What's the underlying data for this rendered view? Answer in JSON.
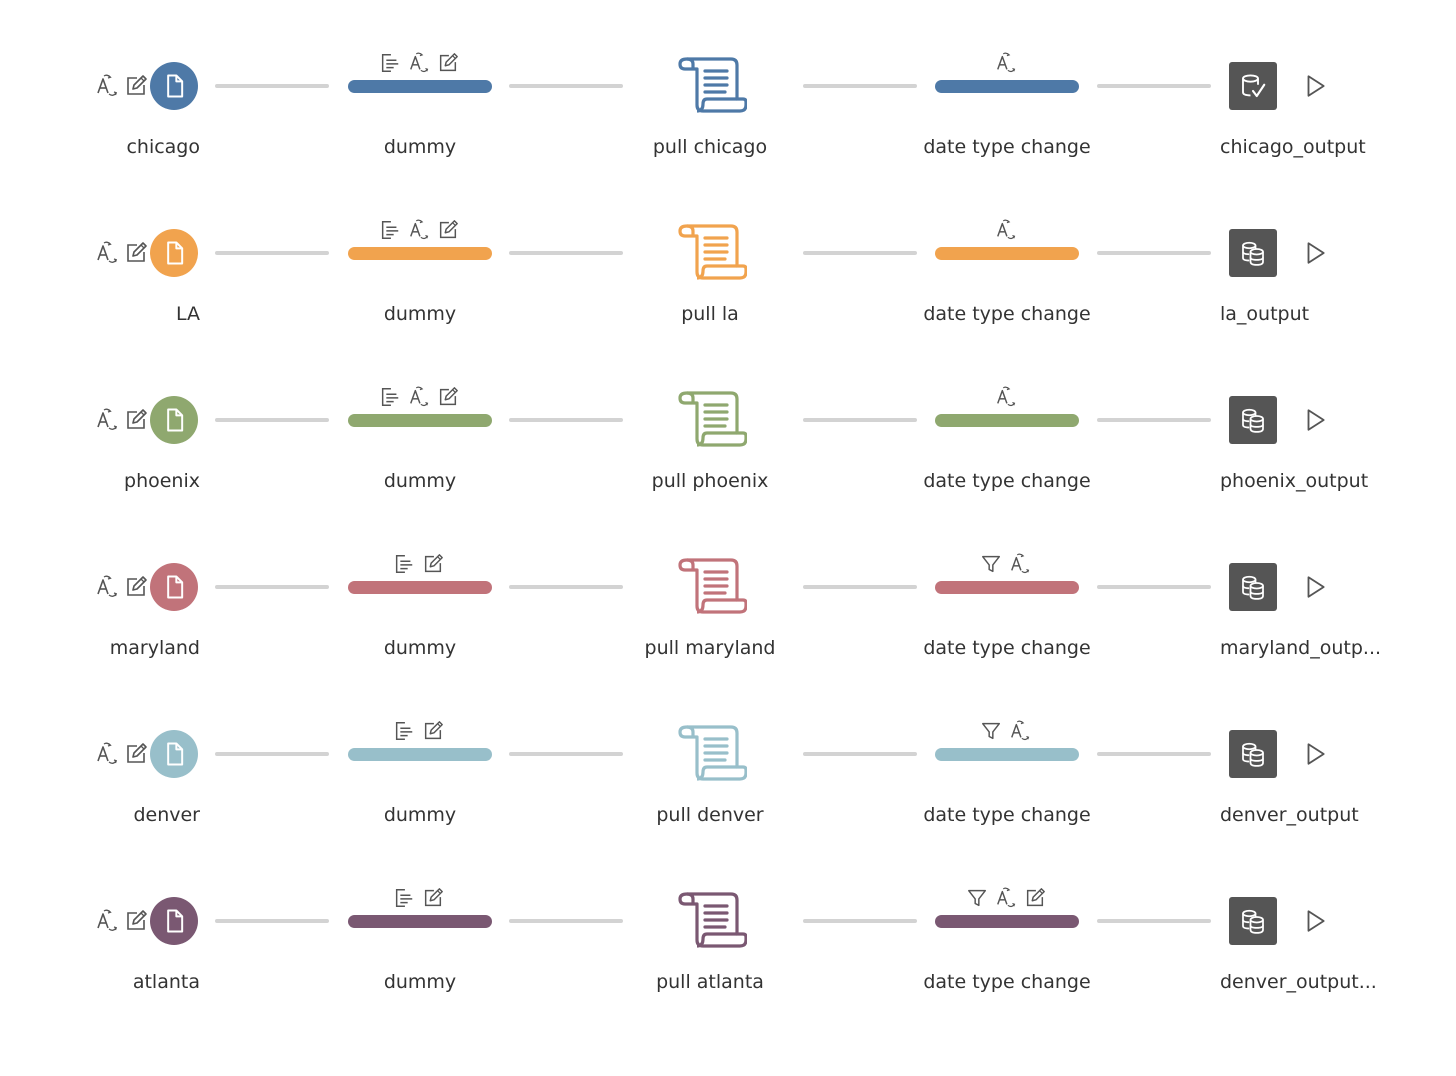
{
  "rows": [
    {
      "color": "#4e79a7",
      "input": {
        "label": "chicago",
        "icons": [
          "rename-icon",
          "edit-icon"
        ]
      },
      "clean": {
        "label": "dummy",
        "icons": [
          "split-icon",
          "rename-icon",
          "edit-icon"
        ]
      },
      "script": {
        "label": "pull chicago"
      },
      "clean2": {
        "label": "date type change",
        "icons": [
          "rename-icon"
        ]
      },
      "output": {
        "label": "chicago_output",
        "icon": "database-check-icon"
      }
    },
    {
      "color": "#f1a34e",
      "input": {
        "label": "LA",
        "icons": [
          "rename-icon",
          "edit-icon"
        ]
      },
      "clean": {
        "label": "dummy",
        "icons": [
          "split-icon",
          "rename-icon",
          "edit-icon"
        ]
      },
      "script": {
        "label": "pull la"
      },
      "clean2": {
        "label": "date type change",
        "icons": [
          "rename-icon"
        ]
      },
      "output": {
        "label": "la_output",
        "icon": "database-stack-icon"
      }
    },
    {
      "color": "#8fa86f",
      "input": {
        "label": "phoenix",
        "icons": [
          "rename-icon",
          "edit-icon"
        ]
      },
      "clean": {
        "label": "dummy",
        "icons": [
          "split-icon",
          "rename-icon",
          "edit-icon"
        ]
      },
      "script": {
        "label": "pull phoenix"
      },
      "clean2": {
        "label": "date type change",
        "icons": [
          "rename-icon"
        ]
      },
      "output": {
        "label": "phoenix_output",
        "icon": "database-stack-icon"
      }
    },
    {
      "color": "#c1737a",
      "input": {
        "label": "maryland",
        "icons": [
          "rename-icon",
          "edit-icon"
        ]
      },
      "clean": {
        "label": "dummy",
        "icons": [
          "split-icon",
          "edit-icon"
        ]
      },
      "script": {
        "label": "pull maryland"
      },
      "clean2": {
        "label": "date type change",
        "icons": [
          "filter-icon",
          "rename-icon"
        ]
      },
      "output": {
        "label": "maryland_outp...",
        "icon": "database-stack-icon"
      }
    },
    {
      "color": "#98bfca",
      "input": {
        "label": "denver",
        "icons": [
          "rename-icon",
          "edit-icon"
        ]
      },
      "clean": {
        "label": "dummy",
        "icons": [
          "split-icon",
          "edit-icon"
        ]
      },
      "script": {
        "label": "pull denver"
      },
      "clean2": {
        "label": "date type change",
        "icons": [
          "filter-icon",
          "rename-icon"
        ]
      },
      "output": {
        "label": "denver_output",
        "icon": "database-stack-icon"
      }
    },
    {
      "color": "#7a5872",
      "input": {
        "label": "atlanta",
        "icons": [
          "rename-icon",
          "edit-icon"
        ]
      },
      "clean": {
        "label": "dummy",
        "icons": [
          "split-icon",
          "edit-icon"
        ]
      },
      "script": {
        "label": "pull atlanta"
      },
      "clean2": {
        "label": "date type change",
        "icons": [
          "filter-icon",
          "rename-icon",
          "edit-icon"
        ]
      },
      "output": {
        "label": "denver_output...",
        "icon": "database-stack-icon"
      }
    }
  ],
  "colors": {
    "connector": "#d3d3d3",
    "annotation_icon": "#555555",
    "output_box": "#555555",
    "label_text": "#333333"
  },
  "icons": {
    "input_node": "file-icon",
    "script_node": "script-scroll-icon",
    "run": "play-icon"
  }
}
